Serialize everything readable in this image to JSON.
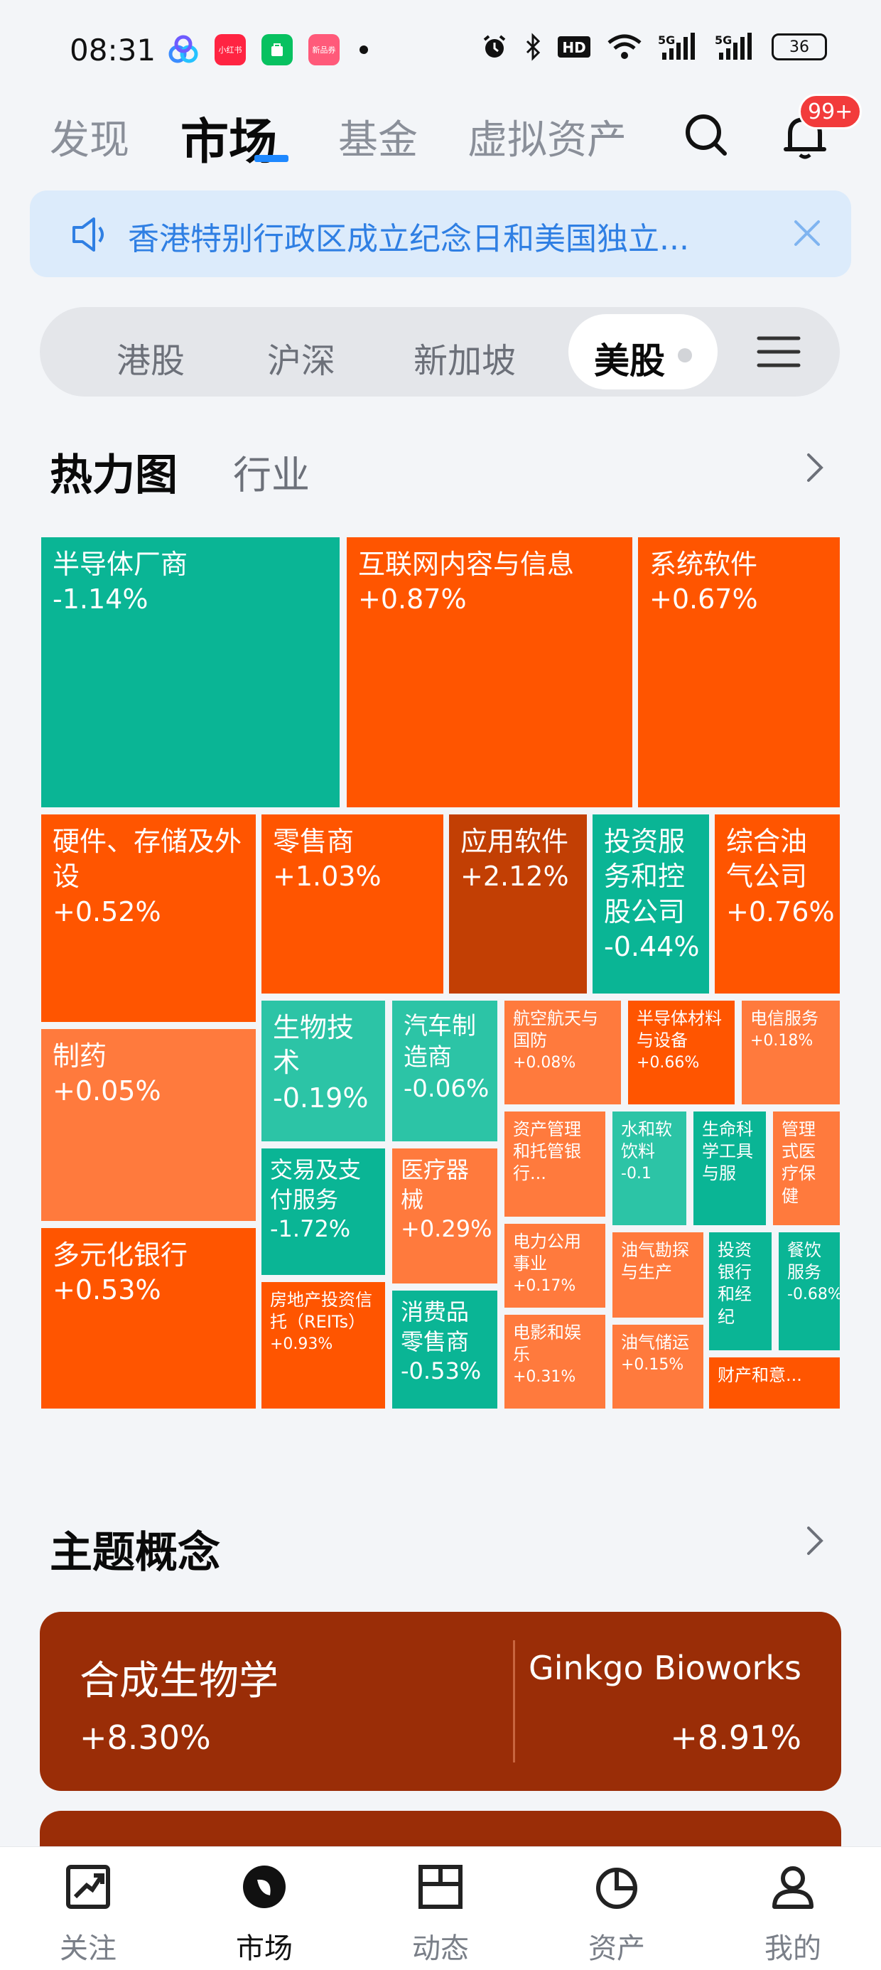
{
  "status_bar": {
    "time": "08:31",
    "battery": "36",
    "icons": [
      "alarm-icon",
      "bluetooth-icon",
      "hd-icon",
      "wifi-icon",
      "signal-5g-icon",
      "signal-5g-icon"
    ],
    "app_icons": [
      {
        "name": "baidu-netdisk-icon",
        "color": "#3b8cff",
        "label": ""
      },
      {
        "name": "xiaohongshu-icon",
        "color": "#ff2442",
        "label": "小红书"
      },
      {
        "name": "wechat-mini-icon",
        "color": "#07c160",
        "label": ""
      },
      {
        "name": "shop-icon",
        "color": "#ff5a7a",
        "label": "新品券"
      }
    ]
  },
  "top_nav": {
    "tabs": [
      "发现",
      "市场",
      "基金",
      "虚拟资产"
    ],
    "active_index": 1,
    "notification_badge": "99+"
  },
  "announcement": {
    "text": "香港特别行政区成立纪念日和美国独立..."
  },
  "market_tabs": {
    "items": [
      "港股",
      "沪深",
      "新加坡",
      "美股"
    ],
    "active": "美股"
  },
  "heatmap": {
    "title": "热力图",
    "subtitle": "行业",
    "colors": {
      "up_strong": "#ff5500",
      "up_mid": "#ff6a1f",
      "up_weak": "#ff7a3d",
      "up_dark": "#c23f04",
      "down_strong": "#0ab595",
      "down_mid": "#2cc4a6",
      "down_weak": "#3dc9ad"
    },
    "cells": [
      {
        "name": "半导体厂商",
        "pct": "-1.14%"
      },
      {
        "name": "互联网内容与信息",
        "pct": "+0.87%"
      },
      {
        "name": "系统软件",
        "pct": "+0.67%"
      },
      {
        "name": "硬件、存储及外设",
        "pct": "+0.52%"
      },
      {
        "name": "零售商",
        "pct": "+1.03%"
      },
      {
        "name": "应用软件",
        "pct": "+2.12%"
      },
      {
        "name": "投资服务和控股公司",
        "pct": "-0.44%"
      },
      {
        "name": "综合油气公司",
        "pct": "+0.76%"
      },
      {
        "name": "制药",
        "pct": "+0.05%"
      },
      {
        "name": "生物技术",
        "pct": "-0.19%"
      },
      {
        "name": "汽车制造商",
        "pct": "-0.06%"
      },
      {
        "name": "航空航天与国防",
        "pct": "+0.08%"
      },
      {
        "name": "半导体材料与设备",
        "pct": "+0.66%"
      },
      {
        "name": "电信服务",
        "pct": "+0.18%"
      },
      {
        "name": "交易及支付服务",
        "pct": "-1.72%"
      },
      {
        "name": "医疗器械",
        "pct": "+0.29%"
      },
      {
        "name": "资产管理和托管银行...",
        "pct": ""
      },
      {
        "name": "水和软饮料",
        "pct": "-0.1"
      },
      {
        "name": "生命科学工具与服",
        "pct": ""
      },
      {
        "name": "管理式医疗保健",
        "pct": ""
      },
      {
        "name": "多元化银行",
        "pct": "+0.53%"
      },
      {
        "name": "房地产投资信托（REITs）",
        "pct": "+0.93%"
      },
      {
        "name": "消费品零售商",
        "pct": "-0.53%"
      },
      {
        "name": "电力公用事业",
        "pct": "+0.17%"
      },
      {
        "name": "油气勘探与生产",
        "pct": ""
      },
      {
        "name": "投资银行和经纪",
        "pct": ""
      },
      {
        "name": "餐饮服务",
        "pct": "-0.68%"
      },
      {
        "name": "电影和娱乐",
        "pct": "+0.31%"
      },
      {
        "name": "油气储运",
        "pct": "+0.15%"
      },
      {
        "name": "财产和意...",
        "pct": ""
      }
    ]
  },
  "theme": {
    "title": "主题概念",
    "cards": [
      {
        "name": "合成生物学",
        "pct": "+8.30%",
        "stock": "Ginkgo Bioworks",
        "stock_pct": "+8.91%"
      }
    ]
  },
  "bottom_nav": {
    "items": [
      {
        "label": "关注",
        "icon": "watchlist-icon"
      },
      {
        "label": "市场",
        "icon": "market-icon"
      },
      {
        "label": "动态",
        "icon": "feed-icon"
      },
      {
        "label": "资产",
        "icon": "assets-icon"
      },
      {
        "label": "我的",
        "icon": "profile-icon"
      }
    ],
    "active": "市场"
  }
}
